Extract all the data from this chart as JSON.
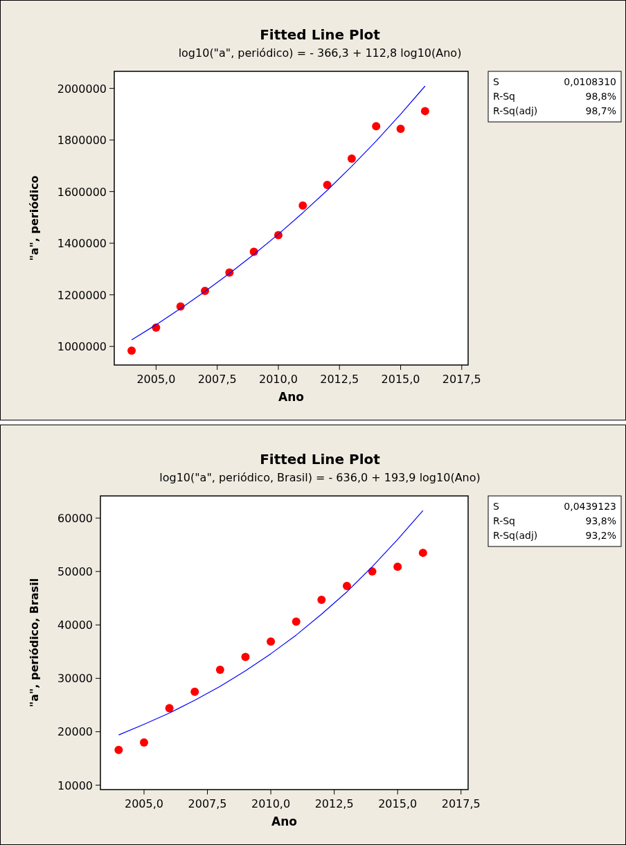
{
  "chart_data": [
    {
      "type": "scatter",
      "title": "Fitted Line Plot",
      "subtitle": "log10(\"a\", periódico) =  - 366,3 + 112,8 log10(Ano)",
      "xlabel": "Ano",
      "ylabel": "\"a\", periódico",
      "xlim": [
        2003.29,
        2017.76
      ],
      "ylim": [
        928000,
        2066000
      ],
      "xticks": [
        {
          "value": 2005,
          "label": "2005,0"
        },
        {
          "value": 2007.5,
          "label": "2007,5"
        },
        {
          "value": 2010,
          "label": "2010,0"
        },
        {
          "value": 2012.5,
          "label": "2012,5"
        },
        {
          "value": 2015,
          "label": "2015,0"
        },
        {
          "value": 2017.5,
          "label": "2017,5"
        }
      ],
      "yticks": [
        1000000,
        1200000,
        1400000,
        1600000,
        1800000,
        2000000
      ],
      "grid": false,
      "annotations": [
        "S",
        "0,0108310",
        "R-Sq",
        "98,8%",
        "R-Sq(adj)",
        "98,7%"
      ],
      "series": [
        {
          "marker": "circle",
          "color": "#ff0000",
          "x": [
            2004,
            2005,
            2006,
            2007,
            2008,
            2009,
            2010,
            2011,
            2012,
            2013,
            2014,
            2015,
            2016
          ],
          "values": [
            984000,
            1073000,
            1155000,
            1215000,
            1286000,
            1367000,
            1431000,
            1546000,
            1626000,
            1728000,
            1853000,
            1843000,
            1912000
          ]
        },
        {
          "type": "line",
          "marker": "none",
          "color": "#0000ff",
          "x": [
            2004,
            2005,
            2006,
            2007,
            2008,
            2009,
            2010,
            2011,
            2012,
            2013,
            2014,
            2015,
            2016
          ],
          "values": [
            1025000,
            1084000,
            1147000,
            1213000,
            1283000,
            1357000,
            1435000,
            1518000,
            1605000,
            1698000,
            1796000,
            1900000,
            2009000
          ]
        }
      ]
    },
    {
      "type": "scatter",
      "title": "Fitted Line Plot",
      "subtitle": "log10(\"a\", periódico, Brasil) =  - 636,0 + 193,9 log10(Ano)",
      "xlabel": "Ano",
      "ylabel": "\"a\", periódico, Brasil",
      "xlim": [
        2003.28,
        2017.78
      ],
      "ylim": [
        9170,
        64150
      ],
      "xticks": [
        {
          "value": 2005,
          "label": "2005,0"
        },
        {
          "value": 2007.5,
          "label": "2007,5"
        },
        {
          "value": 2010,
          "label": "2010,0"
        },
        {
          "value": 2012.5,
          "label": "2012,5"
        },
        {
          "value": 2015,
          "label": "2015,0"
        },
        {
          "value": 2017.5,
          "label": "2017,5"
        }
      ],
      "yticks": [
        10000,
        20000,
        30000,
        40000,
        50000,
        60000
      ],
      "grid": false,
      "annotations": [
        "S",
        "0,0439123",
        "R-Sq",
        "93,8%",
        "R-Sq(adj)",
        "93,2%"
      ],
      "series": [
        {
          "marker": "circle",
          "color": "#ff0000",
          "x": [
            2004,
            2005,
            2006,
            2007,
            2008,
            2009,
            2010,
            2011,
            2012,
            2013,
            2014,
            2015,
            2016
          ],
          "values": [
            16600,
            18000,
            24400,
            27500,
            31600,
            34000,
            36900,
            40600,
            44700,
            47300,
            50000,
            50900,
            53500
          ]
        },
        {
          "type": "line",
          "marker": "none",
          "color": "#0000ff",
          "x": [
            2004,
            2005,
            2006,
            2007,
            2008,
            2009,
            2010,
            2011,
            2012,
            2013,
            2014,
            2015,
            2016
          ],
          "values": [
            19400,
            21400,
            23500,
            25900,
            28500,
            31400,
            34600,
            38100,
            42000,
            46200,
            50900,
            56000,
            61400
          ]
        }
      ]
    }
  ]
}
